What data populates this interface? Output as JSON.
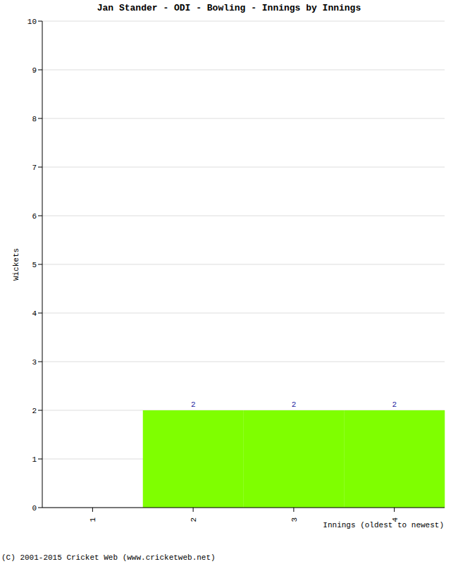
{
  "chart_data": {
    "type": "bar",
    "title": "Jan Stander - ODI - Bowling - Innings by Innings",
    "x_label": "Innings (oldest to newest)",
    "y_label": "Wickets",
    "annotations": [
      "(C) 2001-2015 Cricket Web (www.cricketweb.net)"
    ],
    "categories": [
      "1",
      "2",
      "3",
      "4"
    ],
    "values": [
      0,
      2,
      2,
      2
    ],
    "color": "#7fff00",
    "ylim": [
      0,
      10
    ],
    "yticks": [
      0,
      1,
      2,
      3,
      4,
      5,
      6,
      7,
      8,
      9,
      10
    ],
    "grid": true,
    "data_labels": true
  }
}
